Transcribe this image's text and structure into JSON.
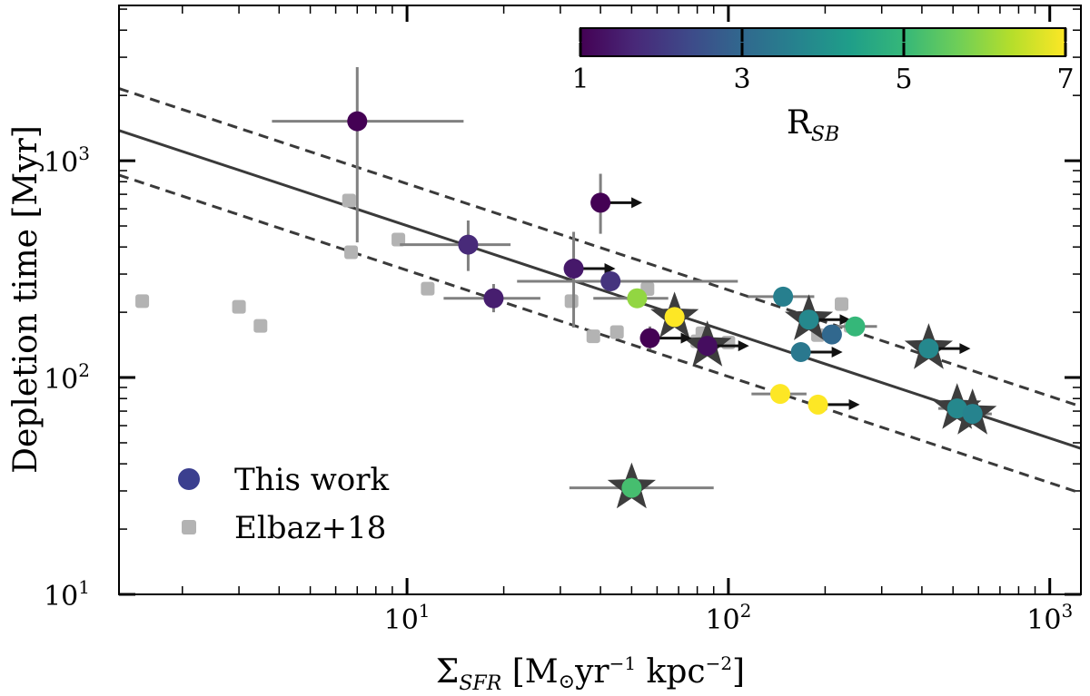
{
  "chart_data": {
    "type": "scatter",
    "xlabel": {
      "base": "Σ",
      "sub": "SFR",
      "unit_open": " [M",
      "sun": "⊙",
      "yr": "yr",
      "yr_exp": "−1",
      "kpc": " kpc",
      "kpc_exp": "−2",
      "close": "]"
    },
    "ylabel": "Depletion time [Myr]",
    "x_scale": "log",
    "y_scale": "log",
    "xlim": [
      1.27,
      1250
    ],
    "ylim": [
      10,
      5200
    ],
    "x_ticks": [
      {
        "base": "10",
        "exp": "1",
        "value": 10
      },
      {
        "base": "10",
        "exp": "2",
        "value": 100
      },
      {
        "base": "10",
        "exp": "3",
        "value": 1000
      }
    ],
    "y_ticks": [
      {
        "base": "10",
        "exp": "1",
        "value": 10
      },
      {
        "base": "10",
        "exp": "2",
        "value": 100
      },
      {
        "base": "10",
        "exp": "3",
        "value": 1000
      }
    ],
    "colorbar": {
      "label_base": "R",
      "label_sub": "SB",
      "min": 1,
      "max": 7,
      "ticks": [
        "1",
        "3",
        "5",
        "7"
      ],
      "colormap": "viridis",
      "stops": [
        "#440154",
        "#482878",
        "#3e4989",
        "#31688e",
        "#26828e",
        "#1f9e89",
        "#35b779",
        "#6ece58",
        "#b5de2b",
        "#fde725"
      ]
    },
    "legend": {
      "position": "bottom-left",
      "entries": [
        {
          "label": "This work",
          "marker": "circle",
          "color": "#3b3f8f"
        },
        {
          "label": "Elbaz+18",
          "marker": "square",
          "color": "#b3b3b3"
        }
      ]
    },
    "fit_line": {
      "slope": -0.49,
      "intercept_at_x1": 1550,
      "color": "#3a3a3a"
    },
    "fit_band": {
      "upper_at_x1": 2420,
      "lower_at_x1": 965,
      "style": "dashed"
    },
    "series": [
      {
        "name": "Elbaz+18",
        "marker": "square",
        "color": "#b3b3b3",
        "points": [
          {
            "x": 1.5,
            "y": 225
          },
          {
            "x": 3.0,
            "y": 212
          },
          {
            "x": 3.5,
            "y": 173
          },
          {
            "x": 6.6,
            "y": 655
          },
          {
            "x": 6.7,
            "y": 378
          },
          {
            "x": 9.4,
            "y": 433
          },
          {
            "x": 11.6,
            "y": 257
          },
          {
            "x": 32.5,
            "y": 225
          },
          {
            "x": 45.0,
            "y": 162
          },
          {
            "x": 38.0,
            "y": 155
          },
          {
            "x": 56.0,
            "y": 256
          },
          {
            "x": 80.0,
            "y": 147
          },
          {
            "x": 83.0,
            "y": 160
          },
          {
            "x": 100.0,
            "y": 145
          },
          {
            "x": 145.0,
            "y": 85
          },
          {
            "x": 225.0,
            "y": 218
          },
          {
            "x": 190.0,
            "y": 157
          },
          {
            "x": 240.0,
            "y": 173
          }
        ]
      },
      {
        "name": "This work",
        "marker": "circle",
        "points": [
          {
            "x": 7.0,
            "y": 1520,
            "r": 1.0,
            "xerr": [
              3.8,
              15.0
            ],
            "yerr": [
              420,
              2700
            ],
            "star": false,
            "limit": false
          },
          {
            "x": 15.5,
            "y": 410,
            "r": 1.7,
            "xerr": [
              9.5,
              21.0
            ],
            "yerr": [
              310,
              530
            ],
            "star": false,
            "limit": false
          },
          {
            "x": 18.6,
            "y": 232,
            "r": 1.5,
            "xerr": [
              13.0,
              26.0
            ],
            "yerr": [
              200,
              270
            ],
            "star": false,
            "limit": false
          },
          {
            "x": 33.0,
            "y": 318,
            "r": 1.4,
            "xerr": null,
            "yerr": [
              170,
              470
            ],
            "star": false,
            "limit": true
          },
          {
            "x": 40.0,
            "y": 640,
            "r": 1.0,
            "xerr": null,
            "yerr": [
              460,
              870
            ],
            "star": false,
            "limit": true
          },
          {
            "x": 43.0,
            "y": 278,
            "r": 1.9,
            "xerr": [
              22.0,
              107.0
            ],
            "yerr": null,
            "star": false,
            "limit": false
          },
          {
            "x": 52.0,
            "y": 232,
            "r": 6.0,
            "xerr": [
              38.0,
              65.0
            ],
            "yerr": null,
            "star": false,
            "limit": false
          },
          {
            "x": 57.0,
            "y": 152,
            "r": 1.0,
            "xerr": null,
            "yerr": [
              135,
              172
            ],
            "star": false,
            "limit": true
          },
          {
            "x": 68.0,
            "y": 190,
            "r": 7.0,
            "xerr": null,
            "yerr": null,
            "star": true,
            "limit": false
          },
          {
            "x": 86.0,
            "y": 140,
            "r": 1.2,
            "xerr": null,
            "yerr": null,
            "star": true,
            "limit": true
          },
          {
            "x": 50.0,
            "y": 31,
            "r": 5.2,
            "xerr": [
              32.0,
              90.0
            ],
            "yerr": null,
            "star": true,
            "limit": false
          },
          {
            "x": 145.0,
            "y": 84,
            "r": 7.0,
            "xerr": [
              118.0,
              175.0
            ],
            "yerr": null,
            "star": false,
            "limit": false
          },
          {
            "x": 190.0,
            "y": 75,
            "r": 7.0,
            "xerr": null,
            "yerr": null,
            "star": false,
            "limit": true
          },
          {
            "x": 148.0,
            "y": 236,
            "r": 3.6,
            "xerr": [
              115.0,
              185.0
            ],
            "yerr": null,
            "star": false,
            "limit": false
          },
          {
            "x": 178.0,
            "y": 185,
            "r": 3.8,
            "xerr": null,
            "yerr": null,
            "star": true,
            "limit": true
          },
          {
            "x": 168.0,
            "y": 131,
            "r": 3.4,
            "xerr": null,
            "yerr": [
              122,
              142
            ],
            "star": false,
            "limit": true
          },
          {
            "x": 210.0,
            "y": 158,
            "r": 3.0,
            "xerr": null,
            "yerr": null,
            "star": false,
            "limit": false
          },
          {
            "x": 248.0,
            "y": 172,
            "r": 5.0,
            "xerr": [
              210.0,
              290.0
            ],
            "yerr": null,
            "star": false,
            "limit": false
          },
          {
            "x": 420.0,
            "y": 136,
            "r": 3.8,
            "xerr": null,
            "yerr": null,
            "star": true,
            "limit": true
          },
          {
            "x": 515.0,
            "y": 72,
            "r": 3.8,
            "xerr": [
              450.0,
              600.0
            ],
            "yerr": null,
            "star": true,
            "limit": false
          },
          {
            "x": 575.0,
            "y": 68,
            "r": 3.7,
            "xerr": [
              500.0,
              660.0
            ],
            "yerr": null,
            "star": true,
            "limit": false
          }
        ]
      }
    ]
  }
}
